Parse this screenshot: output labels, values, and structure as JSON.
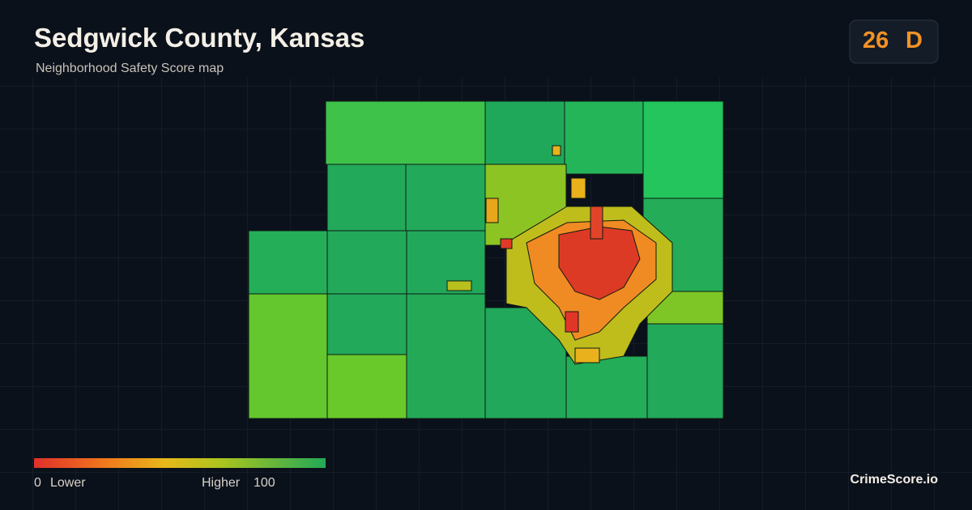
{
  "header": {
    "title": "Sedgwick County, Kansas",
    "subtitle": "Neighborhood Safety Score map"
  },
  "score": {
    "value": 26,
    "grade": "D"
  },
  "legend": {
    "min": 0,
    "min_label": "Lower",
    "max_label": "Higher",
    "max": 100
  },
  "brand": "CrimeScore.io"
}
